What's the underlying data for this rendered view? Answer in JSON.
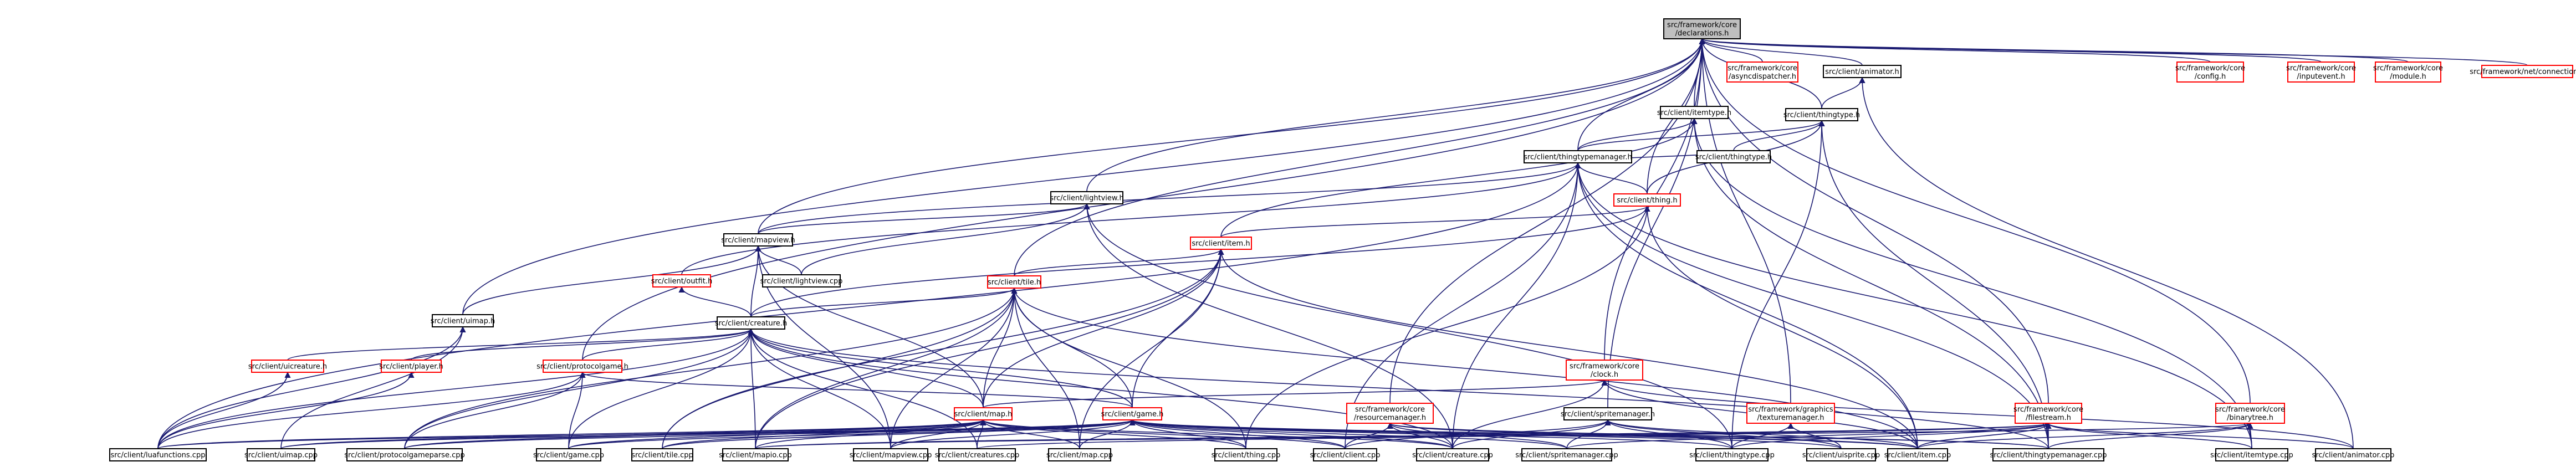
{
  "colors": {
    "edge": "#191970",
    "root_fill": "#bfbfbf",
    "red_border": "#ff0000",
    "black_border": "#000000"
  },
  "nodes": {
    "declarations": {
      "lines": [
        "src/framework/core",
        "/declarations.h"
      ],
      "border": "root"
    },
    "asyncdispatcher": {
      "lines": [
        "src/framework/core",
        "/asyncdispatcher.h"
      ],
      "border": "red"
    },
    "animator_h": {
      "lines": [
        "src/client/animator.h"
      ],
      "border": "black"
    },
    "config": {
      "lines": [
        "src/framework/core",
        "/config.h"
      ],
      "border": "red"
    },
    "inputevent": {
      "lines": [
        "src/framework/core",
        "/inputevent.h"
      ],
      "border": "red"
    },
    "module_h": {
      "lines": [
        "src/framework/core",
        "/module.h"
      ],
      "border": "red"
    },
    "connection": {
      "lines": [
        "src/framework/net/connection.h"
      ],
      "border": "red"
    },
    "itemtype_h": {
      "lines": [
        "src/client/itemtype.h"
      ],
      "border": "black"
    },
    "thingtype_h": {
      "lines": [
        "src/client/thingtype.h"
      ],
      "border": "black"
    },
    "thingtypemanager_h": {
      "lines": [
        "src/client/thingtypemanager.h"
      ],
      "border": "black"
    },
    "thingtype_cpp": {
      "lines": [
        "src/client/thingtype.h"
      ],
      "border": "black"
    },
    "lightview_h": {
      "lines": [
        "src/client/lightview.h"
      ],
      "border": "black"
    },
    "thing_h": {
      "lines": [
        "src/client/thing.h"
      ],
      "border": "red"
    },
    "mapview_h": {
      "lines": [
        "src/client/mapview.h"
      ],
      "border": "black"
    },
    "item_h": {
      "lines": [
        "src/client/item.h"
      ],
      "border": "red"
    },
    "outfit_h": {
      "lines": [
        "src/client/outfit.h"
      ],
      "border": "red"
    },
    "lightview_cpp": {
      "lines": [
        "src/client/lightview.cpp"
      ],
      "border": "black"
    },
    "tile_h": {
      "lines": [
        "src/client/tile.h"
      ],
      "border": "red"
    },
    "uimap_h": {
      "lines": [
        "src/client/uimap.h"
      ],
      "border": "black"
    },
    "creature_h": {
      "lines": [
        "src/client/creature.h"
      ],
      "border": "black"
    },
    "uicreature_h": {
      "lines": [
        "src/client/uicreature.h"
      ],
      "border": "red"
    },
    "player_h": {
      "lines": [
        "src/client/player.h"
      ],
      "border": "red"
    },
    "protocolgame_h": {
      "lines": [
        "src/client/protocolgame.h"
      ],
      "border": "red"
    },
    "clock_h": {
      "lines": [
        "src/framework/core",
        "/clock.h"
      ],
      "border": "red"
    },
    "resourcemanager_h": {
      "lines": [
        "src/framework/core",
        "/resourcemanager.h"
      ],
      "border": "red"
    },
    "map_h": {
      "lines": [
        "src/client/map.h"
      ],
      "border": "red"
    },
    "game_h": {
      "lines": [
        "src/client/game.h"
      ],
      "border": "red"
    },
    "spritemanager_h": {
      "lines": [
        "src/client/spritemanager.h"
      ],
      "border": "black"
    },
    "texturemanager_h": {
      "lines": [
        "src/framework/graphics",
        "/texturemanager.h"
      ],
      "border": "red"
    },
    "filestream_h": {
      "lines": [
        "src/framework/core",
        "/filestream.h"
      ],
      "border": "red"
    },
    "binarytree_h": {
      "lines": [
        "src/framework/core",
        "/binarytree.h"
      ],
      "border": "red"
    },
    "luafunctions_cpp": {
      "lines": [
        "src/client/luafunctions.cpp"
      ],
      "border": "black"
    },
    "uimap_cpp": {
      "lines": [
        "src/client/uimap.cpp"
      ],
      "border": "black"
    },
    "protocolgameparse_cpp": {
      "lines": [
        "src/client/protocolgameparse.cpp"
      ],
      "border": "black"
    },
    "game_cpp": {
      "lines": [
        "src/client/game.cpp"
      ],
      "border": "black"
    },
    "tile_cpp": {
      "lines": [
        "src/client/tile.cpp"
      ],
      "border": "black"
    },
    "mapio_cpp": {
      "lines": [
        "src/client/mapio.cpp"
      ],
      "border": "black"
    },
    "mapview_cpp": {
      "lines": [
        "src/client/mapview.cpp"
      ],
      "border": "black"
    },
    "creatures_cpp": {
      "lines": [
        "src/client/creatures.cpp"
      ],
      "border": "black"
    },
    "map_cpp": {
      "lines": [
        "src/client/map.cpp"
      ],
      "border": "black"
    },
    "thing_cpp": {
      "lines": [
        "src/client/thing.cpp"
      ],
      "border": "black"
    },
    "client_cpp": {
      "lines": [
        "src/client/client.cpp"
      ],
      "border": "black"
    },
    "creature_cpp": {
      "lines": [
        "src/client/creature.cpp"
      ],
      "border": "black"
    },
    "spritemanager_cpp": {
      "lines": [
        "src/client/spritemanager.cpp"
      ],
      "border": "black"
    },
    "thingtype_cpp2": {
      "lines": [
        "src/client/thingtype.cpp"
      ],
      "border": "black"
    },
    "uisprite_cpp": {
      "lines": [
        "src/client/uisprite.cpp"
      ],
      "border": "black"
    },
    "item_cpp": {
      "lines": [
        "src/client/item.cpp"
      ],
      "border": "black"
    },
    "thingtypemanager_cpp": {
      "lines": [
        "src/client/thingtypemanager.cpp"
      ],
      "border": "black"
    },
    "itemtype_cpp": {
      "lines": [
        "src/client/itemtype.cpp"
      ],
      "border": "black"
    },
    "animator_cpp": {
      "lines": [
        "src/client/animator.cpp"
      ],
      "border": "black"
    }
  }
}
